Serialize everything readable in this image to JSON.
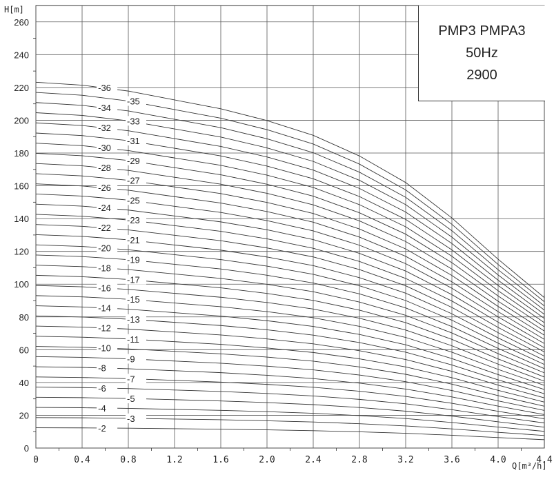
{
  "chart_data": {
    "type": "line",
    "title_lines": [
      "PMP3 PMPA3",
      "50Hz",
      "2900"
    ],
    "xlabel": "Q[m³/h]",
    "ylabel": "H[m]",
    "xlim": [
      0,
      4.4
    ],
    "ylim": [
      0,
      270
    ],
    "x_tick_labels": [
      "0",
      "0.4",
      "0.8",
      "1.2",
      "1.6",
      "2.0",
      "2.4",
      "2.8",
      "3.2",
      "3.6",
      "4.0",
      "4.4"
    ],
    "y_tick_labels": [
      "0",
      "20",
      "40",
      "60",
      "80",
      "100",
      "120",
      "140",
      "160",
      "180",
      "200",
      "220",
      "240",
      "260"
    ],
    "grid": true,
    "x": [
      0,
      0.4,
      0.8,
      1.2,
      1.6,
      2.0,
      2.4,
      2.8,
      3.2,
      3.6,
      4.0,
      4.4
    ],
    "head_per_stage": [
      6.2,
      6.15,
      6.05,
      5.9,
      5.75,
      5.55,
      5.3,
      4.95,
      4.5,
      3.9,
      3.2,
      2.55
    ],
    "series": [
      {
        "name": "-2",
        "values": [
          12.4,
          12.3,
          12.1,
          11.8,
          11.5,
          11.1,
          10.6,
          9.9,
          9.0,
          7.8,
          6.4,
          5.1
        ]
      },
      {
        "name": "-3",
        "values": [
          18.6,
          18.45,
          18.15,
          17.7,
          17.25,
          16.65,
          15.9,
          14.85,
          13.5,
          11.7,
          9.6,
          7.65
        ]
      },
      {
        "name": "-4",
        "values": [
          24.8,
          24.6,
          24.2,
          23.6,
          23.0,
          22.2,
          21.2,
          19.8,
          18.0,
          15.6,
          12.8,
          10.2
        ]
      },
      {
        "name": "-5",
        "values": [
          31.0,
          30.75,
          30.25,
          29.5,
          28.75,
          27.75,
          26.5,
          24.75,
          22.5,
          19.5,
          16.0,
          12.75
        ]
      },
      {
        "name": "-6",
        "values": [
          37.2,
          36.9,
          36.3,
          35.4,
          34.5,
          33.3,
          31.8,
          29.7,
          27.0,
          23.4,
          19.2,
          15.3
        ]
      },
      {
        "name": "-7",
        "values": [
          43.4,
          43.05,
          42.35,
          41.3,
          40.25,
          38.85,
          37.1,
          34.65,
          31.5,
          27.3,
          22.4,
          17.85
        ]
      },
      {
        "name": "-8",
        "values": [
          49.6,
          49.2,
          48.4,
          47.2,
          46.0,
          44.4,
          42.4,
          39.6,
          36.0,
          31.2,
          25.6,
          20.4
        ]
      },
      {
        "name": "-9",
        "values": [
          55.8,
          55.35,
          54.45,
          53.1,
          51.75,
          49.95,
          47.7,
          44.55,
          40.5,
          35.1,
          28.8,
          22.95
        ]
      },
      {
        "name": "-10",
        "values": [
          62.0,
          61.5,
          60.5,
          59.0,
          57.5,
          55.5,
          53.0,
          49.5,
          45.0,
          39.0,
          32.0,
          25.5
        ]
      },
      {
        "name": "-11",
        "values": [
          68.2,
          67.65,
          66.55,
          64.9,
          63.25,
          61.05,
          58.3,
          54.45,
          49.5,
          42.9,
          35.2,
          28.05
        ]
      },
      {
        "name": "-12",
        "values": [
          74.4,
          73.8,
          72.6,
          70.8,
          69.0,
          66.6,
          63.6,
          59.4,
          54.0,
          46.8,
          38.4,
          30.6
        ]
      },
      {
        "name": "-13",
        "values": [
          80.6,
          79.95,
          78.65,
          76.7,
          74.75,
          72.15,
          68.9,
          64.35,
          58.5,
          50.7,
          41.6,
          33.15
        ]
      },
      {
        "name": "-14",
        "values": [
          86.8,
          86.1,
          84.7,
          82.6,
          80.5,
          77.7,
          74.2,
          69.3,
          63.0,
          54.6,
          44.8,
          35.7
        ]
      },
      {
        "name": "-15",
        "values": [
          93.0,
          92.25,
          90.75,
          88.5,
          86.25,
          83.25,
          79.5,
          74.25,
          67.5,
          58.5,
          48.0,
          38.25
        ]
      },
      {
        "name": "-16",
        "values": [
          99.2,
          98.4,
          96.8,
          94.4,
          92.0,
          88.8,
          84.8,
          79.2,
          72.0,
          62.4,
          51.2,
          40.8
        ]
      },
      {
        "name": "-17",
        "values": [
          105.4,
          104.55,
          102.85,
          100.3,
          97.75,
          94.35,
          90.1,
          84.15,
          76.5,
          66.3,
          54.4,
          43.35
        ]
      },
      {
        "name": "-18",
        "values": [
          111.6,
          110.7,
          108.9,
          106.2,
          103.5,
          99.9,
          95.4,
          89.1,
          81.0,
          70.2,
          57.6,
          45.9
        ]
      },
      {
        "name": "-19",
        "values": [
          117.8,
          116.85,
          114.95,
          112.1,
          109.25,
          105.45,
          100.7,
          94.05,
          85.5,
          74.1,
          60.8,
          48.45
        ]
      },
      {
        "name": "-20",
        "values": [
          124.0,
          123.0,
          121.0,
          118.0,
          115.0,
          111.0,
          106.0,
          99.0,
          90.0,
          78.0,
          64.0,
          51.0
        ]
      },
      {
        "name": "-21",
        "values": [
          130.2,
          129.15,
          127.05,
          123.9,
          120.75,
          116.55,
          111.3,
          103.95,
          94.5,
          81.9,
          67.2,
          53.55
        ]
      },
      {
        "name": "-22",
        "values": [
          136.4,
          135.3,
          133.1,
          129.8,
          126.5,
          122.1,
          116.6,
          108.9,
          99.0,
          85.8,
          70.4,
          56.1
        ]
      },
      {
        "name": "-23",
        "values": [
          142.6,
          141.45,
          139.15,
          135.7,
          132.25,
          127.65,
          121.9,
          113.85,
          103.5,
          89.7,
          73.6,
          58.65
        ]
      },
      {
        "name": "-24",
        "values": [
          148.8,
          147.6,
          145.2,
          141.6,
          138.0,
          133.2,
          127.2,
          118.8,
          108.0,
          93.6,
          76.8,
          61.2
        ]
      },
      {
        "name": "-25",
        "values": [
          155.0,
          153.75,
          151.25,
          147.5,
          143.75,
          138.75,
          132.5,
          123.75,
          112.5,
          97.5,
          80.0,
          63.75
        ]
      },
      {
        "name": "-26",
        "values": [
          161.2,
          159.9,
          157.3,
          153.4,
          149.5,
          144.3,
          137.8,
          128.7,
          117.0,
          101.4,
          83.2,
          66.3
        ]
      },
      {
        "name": "-27",
        "values": [
          167.4,
          166.05,
          163.35,
          159.3,
          155.25,
          149.85,
          143.1,
          133.65,
          121.5,
          105.3,
          86.4,
          68.85
        ]
      },
      {
        "name": "-28",
        "values": [
          173.6,
          172.2,
          169.4,
          165.2,
          161.0,
          155.4,
          148.4,
          138.6,
          126.0,
          109.2,
          89.6,
          71.4
        ]
      },
      {
        "name": "-29",
        "values": [
          179.8,
          178.35,
          175.45,
          171.1,
          166.75,
          160.95,
          153.7,
          143.55,
          130.5,
          113.1,
          92.8,
          73.95
        ]
      },
      {
        "name": "-30",
        "values": [
          186.0,
          184.5,
          181.5,
          177.0,
          172.5,
          166.5,
          159.0,
          148.5,
          135.0,
          117.0,
          96.0,
          76.5
        ]
      },
      {
        "name": "-31",
        "values": [
          192.2,
          190.65,
          187.55,
          182.9,
          178.25,
          172.05,
          164.3,
          153.45,
          139.5,
          120.9,
          99.2,
          79.05
        ]
      },
      {
        "name": "-32",
        "values": [
          198.4,
          196.8,
          193.6,
          188.8,
          184.0,
          177.6,
          169.6,
          158.4,
          144.0,
          124.8,
          102.4,
          81.6
        ]
      },
      {
        "name": "-33",
        "values": [
          204.6,
          202.95,
          199.65,
          194.7,
          189.75,
          183.15,
          174.9,
          163.35,
          148.5,
          128.7,
          105.6,
          84.15
        ]
      },
      {
        "name": "-34",
        "values": [
          210.8,
          209.1,
          205.7,
          200.6,
          195.5,
          188.7,
          180.2,
          168.3,
          153.0,
          132.6,
          108.8,
          86.7
        ]
      },
      {
        "name": "-35",
        "values": [
          217.0,
          215.25,
          211.75,
          206.5,
          201.25,
          194.25,
          185.5,
          173.25,
          157.5,
          136.5,
          112.0,
          89.25
        ]
      },
      {
        "name": "-36",
        "values": [
          223.2,
          221.4,
          217.8,
          212.4,
          207.0,
          199.8,
          190.8,
          178.2,
          162.0,
          140.4,
          115.2,
          91.8
        ]
      }
    ]
  }
}
